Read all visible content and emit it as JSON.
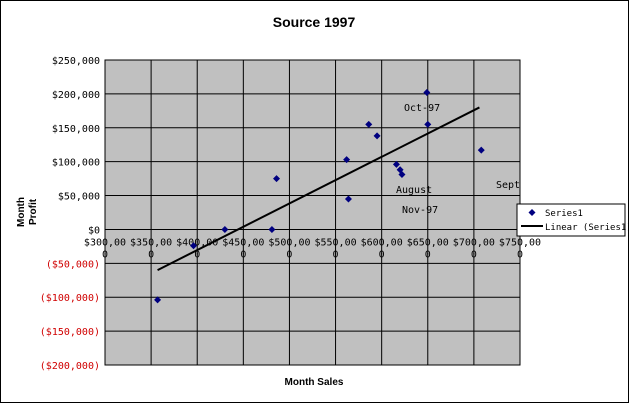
{
  "chart_data": {
    "type": "scatter",
    "title": "Source 1997",
    "xlabel": "Month Sales",
    "ylabel_lines": [
      "Month",
      "Profit"
    ],
    "xlim": [
      300000,
      750000
    ],
    "ylim": [
      -200000,
      250000
    ],
    "x_tick_labels": [
      [
        "$300,00",
        "0"
      ],
      [
        "$350,00",
        "0"
      ],
      [
        "$400,00",
        "0"
      ],
      [
        "$450,00",
        "0"
      ],
      [
        "$500,00",
        "0"
      ],
      [
        "$550,00",
        "0"
      ],
      [
        "$600,00",
        "0"
      ],
      [
        "$650,00",
        "0"
      ],
      [
        "$700,00",
        "0"
      ],
      [
        "$750,00",
        "0"
      ]
    ],
    "y_tick_labels": [
      "$250,000",
      "$200,000",
      "$150,000",
      "$100,000",
      "$50,000",
      "$0",
      "($50,000)",
      "($100,000)",
      "($150,000)",
      "($200,000)"
    ],
    "grid": true,
    "legend_position": "right",
    "series": [
      {
        "name": "Series1",
        "marker": "diamond",
        "color": "#000080",
        "points": [
          [
            357000,
            -104000
          ],
          [
            396000,
            -24000
          ],
          [
            430000,
            0
          ],
          [
            481000,
            0
          ],
          [
            486000,
            75000
          ],
          [
            562000,
            103000
          ],
          [
            564000,
            45000
          ],
          [
            586000,
            155000
          ],
          [
            595000,
            138000
          ],
          [
            616000,
            96000
          ],
          [
            620000,
            88000
          ],
          [
            622000,
            81000
          ],
          [
            649000,
            202000
          ],
          [
            650000,
            155000
          ],
          [
            708000,
            117000
          ]
        ]
      }
    ],
    "trendline": {
      "name": "Linear (Series1)",
      "color": "#000000",
      "from": [
        357000,
        -60000
      ],
      "to": [
        706000,
        180000
      ]
    },
    "annotations": [
      "Oct-97",
      "August",
      "Nov-97",
      "Sept"
    ],
    "colors": {
      "plot_background": "#c0c0c0",
      "gridline": "#000000",
      "negative_tick_text": "#d00000"
    }
  }
}
